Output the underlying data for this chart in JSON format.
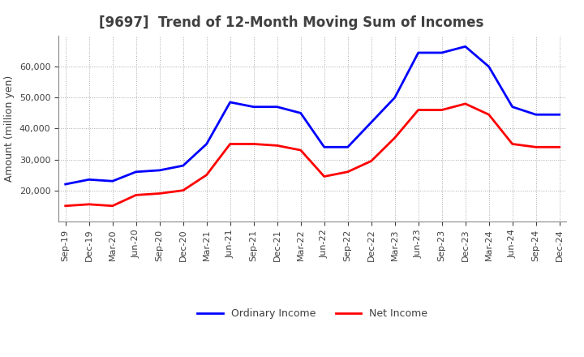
{
  "title": "[9697]  Trend of 12-Month Moving Sum of Incomes",
  "ylabel": "Amount (million yen)",
  "x_labels": [
    "Sep-19",
    "Dec-19",
    "Mar-20",
    "Jun-20",
    "Sep-20",
    "Dec-20",
    "Mar-21",
    "Jun-21",
    "Sep-21",
    "Dec-21",
    "Mar-22",
    "Jun-22",
    "Sep-22",
    "Dec-22",
    "Mar-23",
    "Jun-23",
    "Sep-23",
    "Dec-23",
    "Mar-24",
    "Jun-24",
    "Sep-24",
    "Dec-24"
  ],
  "ordinary_income": [
    22000,
    23500,
    23000,
    26000,
    26500,
    28000,
    35000,
    48500,
    47000,
    47000,
    45000,
    34000,
    34000,
    42000,
    50000,
    64500,
    64500,
    66500,
    60000,
    47000,
    44500,
    44500
  ],
  "net_income": [
    15000,
    15500,
    15000,
    18500,
    19000,
    20000,
    25000,
    35000,
    35000,
    34500,
    33000,
    24500,
    26000,
    29500,
    37000,
    46000,
    46000,
    48000,
    44500,
    35000,
    34000,
    34000
  ],
  "ordinary_color": "#0000FF",
  "net_color": "#FF0000",
  "background_color": "#FFFFFF",
  "grid_color": "#AAAAAA",
  "text_color": "#404040",
  "ylim_min": 10000,
  "ylim_max": 70000,
  "yticks": [
    20000,
    30000,
    40000,
    50000,
    60000
  ],
  "line_width": 2.0,
  "title_fontsize": 12,
  "axis_fontsize": 9,
  "tick_fontsize": 8,
  "legend_fontsize": 9
}
